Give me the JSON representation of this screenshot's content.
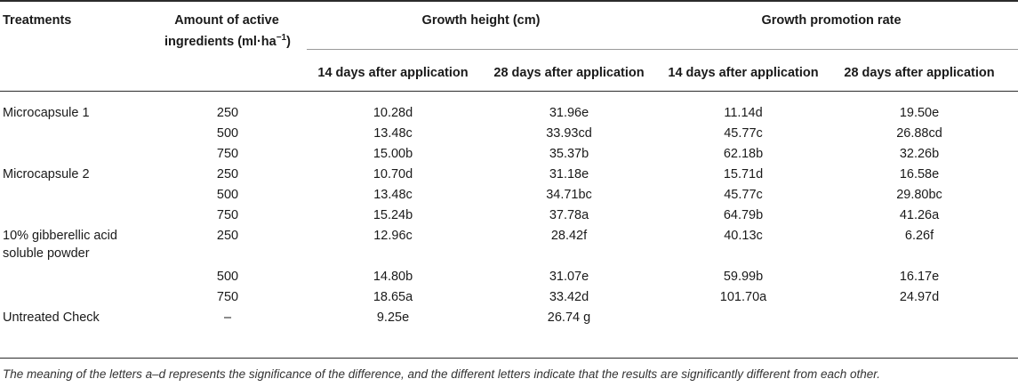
{
  "table": {
    "header": {
      "treatments": "Treatments",
      "amount_line1": "Amount of active",
      "amount_line2": "ingredients (ml·ha",
      "amount_sup": "−1",
      "amount_close": ")",
      "growth_height": "Growth height (cm)",
      "growth_promotion": "Growth promotion rate",
      "gh_14": "14 days after application",
      "gh_28": "28 days after application",
      "gp_14": "14 days after application",
      "gp_28": "28 days after application"
    },
    "rows": [
      {
        "treatment": "Microcapsule 1",
        "treatment2": "",
        "amount": "250",
        "gh14": "10.28d",
        "gh28": "31.96e",
        "gp14": "11.14d",
        "gp28": "19.50e"
      },
      {
        "treatment": "",
        "treatment2": "",
        "amount": "500",
        "gh14": "13.48c",
        "gh28": "33.93cd",
        "gp14": "45.77c",
        "gp28": "26.88cd"
      },
      {
        "treatment": "",
        "treatment2": "",
        "amount": "750",
        "gh14": "15.00b",
        "gh28": "35.37b",
        "gp14": "62.18b",
        "gp28": "32.26b"
      },
      {
        "treatment": "Microcapsule 2",
        "treatment2": "",
        "amount": "250",
        "gh14": "10.70d",
        "gh28": "31.18e",
        "gp14": "15.71d",
        "gp28": "16.58e"
      },
      {
        "treatment": "",
        "treatment2": "",
        "amount": "500",
        "gh14": "13.48c",
        "gh28": "34.71bc",
        "gp14": "45.77c",
        "gp28": "29.80bc"
      },
      {
        "treatment": "",
        "treatment2": "",
        "amount": "750",
        "gh14": "15.24b",
        "gh28": "37.78a",
        "gp14": "64.79b",
        "gp28": "41.26a"
      },
      {
        "treatment": "10% gibberellic acid",
        "treatment2": "soluble powder",
        "amount": "250",
        "gh14": "12.96c",
        "gh28": "28.42f",
        "gp14": "40.13c",
        "gp28": "6.26f"
      },
      {
        "treatment": "",
        "treatment2": "",
        "amount": "500",
        "gh14": "14.80b",
        "gh28": "31.07e",
        "gp14": "59.99b",
        "gp28": "16.17e"
      },
      {
        "treatment": "",
        "treatment2": "",
        "amount": "750",
        "gh14": "18.65a",
        "gh28": "33.42d",
        "gp14": "101.70a",
        "gp28": "24.97d"
      },
      {
        "treatment": "Untreated Check",
        "treatment2": "",
        "amount": "–",
        "gh14": "9.25e",
        "gh28": "26.74 g",
        "gp14": "",
        "gp28": ""
      }
    ],
    "footnote": "The meaning of the letters a–d represents the significance of the difference, and the different letters indicate that the results are significantly different from each other."
  }
}
